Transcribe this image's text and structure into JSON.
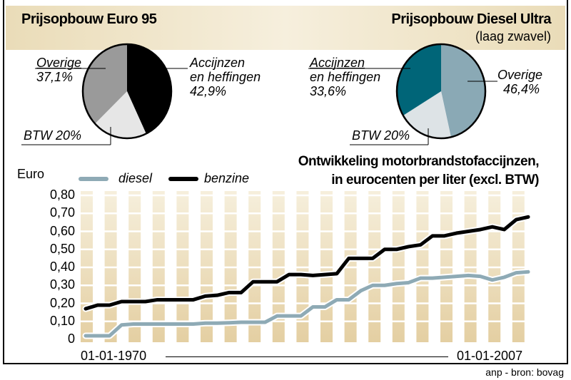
{
  "pies": [
    {
      "title": "Prijsopbouw Euro 95",
      "subtitle": "",
      "slices": [
        {
          "label": "Accijnzen\nen heffingen",
          "l1": "Accijnzen",
          "l2": "en heffingen",
          "value": "42,9%",
          "pct": 42.9,
          "color": "#000000"
        },
        {
          "label": "BTW",
          "l1": "BTW 20%",
          "value": "20%",
          "pct": 20,
          "color": "#e6e6e6"
        },
        {
          "label": "Overige",
          "l1": "Overige",
          "value": "37,1%",
          "pct": 37.1,
          "color": "#9a9a9a"
        }
      ]
    },
    {
      "title": "Prijsopbouw Diesel Ultra",
      "subtitle": "(laag zwavel)",
      "slices": [
        {
          "label": "Overige",
          "l1": "Overige",
          "value": "46,4%",
          "pct": 46.4,
          "color": "#8aa9b5"
        },
        {
          "label": "BTW",
          "l1": "BTW 20%",
          "value": "20%",
          "pct": 20,
          "color": "#dde3e6"
        },
        {
          "label": "Accijnzen\nen heffingen",
          "l1": "Accijnzen",
          "l2": "en heffingen",
          "value": "33,6%",
          "pct": 33.6,
          "color": "#006578"
        }
      ]
    }
  ],
  "chart_data": {
    "type": "line",
    "title": "Ontwikkeling motorbrandstofaccijnzen,",
    "subtitle": "in eurocenten per liter (excl. BTW)",
    "ylabel": "Euro",
    "ylim": [
      0,
      0.8
    ],
    "yticks": [
      "0",
      "0,10",
      "0,20",
      "0,30",
      "0,40",
      "0,50",
      "0,60",
      "0,70",
      "0,80"
    ],
    "x_start_label": "01-01-1970",
    "x_end_label": "01-01-2007",
    "x": [
      1970,
      1971,
      1972,
      1973,
      1974,
      1975,
      1976,
      1977,
      1978,
      1979,
      1980,
      1981,
      1982,
      1983,
      1984,
      1985,
      1986,
      1987,
      1988,
      1989,
      1990,
      1991,
      1992,
      1993,
      1994,
      1995,
      1996,
      1997,
      1998,
      1999,
      2000,
      2001,
      2002,
      2003,
      2004,
      2005,
      2006,
      2007
    ],
    "series": [
      {
        "name": "diesel",
        "color": "#8eaab5",
        "values": [
          0.02,
          0.02,
          0.02,
          0.08,
          0.085,
          0.085,
          0.085,
          0.085,
          0.085,
          0.085,
          0.09,
          0.09,
          0.092,
          0.095,
          0.095,
          0.095,
          0.13,
          0.13,
          0.13,
          0.18,
          0.18,
          0.22,
          0.22,
          0.27,
          0.3,
          0.3,
          0.31,
          0.315,
          0.34,
          0.34,
          0.345,
          0.35,
          0.355,
          0.35,
          0.33,
          0.345,
          0.37,
          0.375
        ]
      },
      {
        "name": "benzine",
        "color": "#000000",
        "values": [
          0.17,
          0.19,
          0.19,
          0.21,
          0.21,
          0.21,
          0.22,
          0.22,
          0.22,
          0.22,
          0.24,
          0.245,
          0.26,
          0.26,
          0.32,
          0.32,
          0.32,
          0.36,
          0.36,
          0.355,
          0.36,
          0.365,
          0.45,
          0.45,
          0.45,
          0.5,
          0.5,
          0.515,
          0.525,
          0.575,
          0.575,
          0.59,
          0.6,
          0.61,
          0.625,
          0.61,
          0.665,
          0.68
        ]
      }
    ],
    "grid": true
  },
  "source": "anp - bron: bovag"
}
